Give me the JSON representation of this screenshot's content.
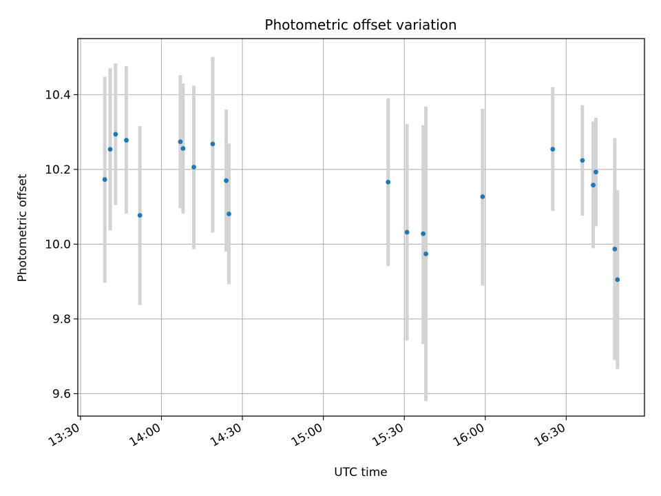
{
  "chart_data": {
    "type": "scatter",
    "title": "Photometric offset variation",
    "xlabel": "UTC time",
    "ylabel": "Photometric offset",
    "x_unit": "time of day (HH:MM)",
    "xlim": [
      "13:29",
      "16:59"
    ],
    "ylim": [
      9.54,
      10.55
    ],
    "xticks": [
      "13:30",
      "14:00",
      "14:30",
      "15:00",
      "15:30",
      "16:00",
      "16:30"
    ],
    "yticks": [
      "9.6",
      "9.8",
      "10.0",
      "10.2",
      "10.4"
    ],
    "grid": true,
    "point_color": "#1f77b4",
    "errorbar_color": "#d3d3d3",
    "points": [
      {
        "x": "13:39",
        "y": 10.173,
        "ylo": 9.897,
        "yhi": 10.448
      },
      {
        "x": "13:41",
        "y": 10.254,
        "ylo": 10.037,
        "yhi": 10.471
      },
      {
        "x": "13:43",
        "y": 10.294,
        "ylo": 10.105,
        "yhi": 10.483
      },
      {
        "x": "13:47",
        "y": 10.278,
        "ylo": 10.082,
        "yhi": 10.476
      },
      {
        "x": "13:52",
        "y": 10.077,
        "ylo": 9.837,
        "yhi": 10.316
      },
      {
        "x": "14:07",
        "y": 10.274,
        "ylo": 10.096,
        "yhi": 10.452
      },
      {
        "x": "14:08",
        "y": 10.256,
        "ylo": 10.082,
        "yhi": 10.43
      },
      {
        "x": "14:12",
        "y": 10.206,
        "ylo": 9.987,
        "yhi": 10.424
      },
      {
        "x": "14:19",
        "y": 10.268,
        "ylo": 10.031,
        "yhi": 10.501
      },
      {
        "x": "14:24",
        "y": 10.17,
        "ylo": 9.98,
        "yhi": 10.36
      },
      {
        "x": "14:25",
        "y": 10.081,
        "ylo": 9.893,
        "yhi": 10.269
      },
      {
        "x": "15:24",
        "y": 10.166,
        "ylo": 9.941,
        "yhi": 10.39
      },
      {
        "x": "15:31",
        "y": 10.032,
        "ylo": 9.742,
        "yhi": 10.322
      },
      {
        "x": "15:37",
        "y": 10.028,
        "ylo": 9.733,
        "yhi": 10.318
      },
      {
        "x": "15:38",
        "y": 9.974,
        "ylo": 9.58,
        "yhi": 10.368
      },
      {
        "x": "15:59",
        "y": 10.127,
        "ylo": 9.889,
        "yhi": 10.362
      },
      {
        "x": "16:25",
        "y": 10.254,
        "ylo": 10.089,
        "yhi": 10.42
      },
      {
        "x": "16:36",
        "y": 10.224,
        "ylo": 10.076,
        "yhi": 10.372
      },
      {
        "x": "16:40",
        "y": 10.158,
        "ylo": 9.989,
        "yhi": 10.328
      },
      {
        "x": "16:41",
        "y": 10.193,
        "ylo": 10.048,
        "yhi": 10.338
      },
      {
        "x": "16:48",
        "y": 9.987,
        "ylo": 9.69,
        "yhi": 10.284
      },
      {
        "x": "16:49",
        "y": 9.905,
        "ylo": 9.666,
        "yhi": 10.144
      }
    ]
  }
}
